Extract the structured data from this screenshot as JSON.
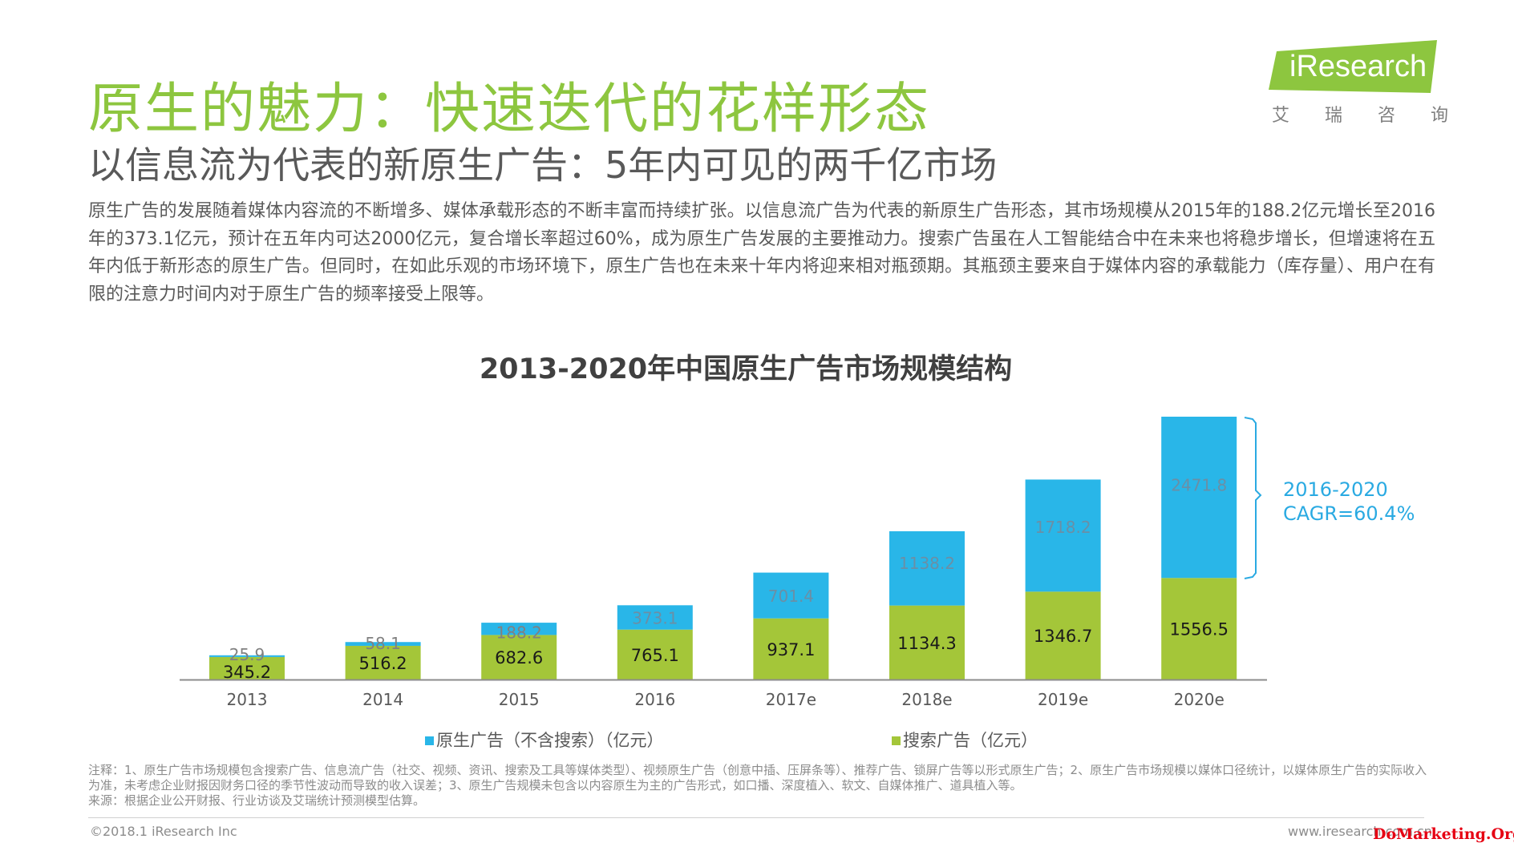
{
  "header": {
    "title": "原生的魅力：快速迭代的花样形态",
    "subtitle": "以信息流为代表的新原生广告：5年内可见的两千亿市场",
    "paragraph": "原生广告的发展随着媒体内容流的不断增多、媒体承载形态的不断丰富而持续扩张。以信息流广告为代表的新原生广告形态，其市场规模从2015年的188.2亿元增长至2016年的373.1亿元，预计在五年内可达2000亿元，复合增长率超过60%，成为原生广告发展的主要推动力。搜索广告虽在人工智能结合中在未来也将稳步增长，但增速将在五年内低于新形态的原生广告。但同时，在如此乐观的市场环境下，原生广告也在未来十年内将迎来相对瓶颈期。其瓶颈主要来自于媒体内容的承载能力（库存量）、用户在有限的注意力时间内对于原生广告的频率接受上限等。"
  },
  "logo": {
    "text": "iResearch",
    "sub": [
      "艾",
      "瑞",
      "咨",
      "询"
    ],
    "color": "#8dc63f"
  },
  "chart_data": {
    "type": "bar",
    "stacked": true,
    "title": "2013-2020年中国原生广告市场规模结构",
    "categories": [
      "2013",
      "2014",
      "2015",
      "2016",
      "2017e",
      "2018e",
      "2019e",
      "2020e"
    ],
    "series": [
      {
        "name": "搜索广告（亿元）",
        "color": "#a4c639",
        "values": [
          345.2,
          516.2,
          682.6,
          765.1,
          937.1,
          1134.3,
          1346.7,
          1556.5
        ]
      },
      {
        "name": "原生广告（不含搜索）（亿元）",
        "color": "#29b6e8",
        "values": [
          25.9,
          58.1,
          188.2,
          373.1,
          701.4,
          1138.2,
          1718.2,
          2471.8
        ]
      }
    ],
    "legend_order": [
      1,
      0
    ],
    "legend_position": "bottom",
    "ylim": [
      0,
      4028.3
    ],
    "annotation": {
      "lines": [
        "2016-2020",
        "CAGR=60.4%"
      ],
      "color": "#2aaae2"
    },
    "grid": false
  },
  "footer": {
    "note": "注释：1、原生广告市场规模包含搜索广告、信息流广告（社交、视频、资讯、搜索及工具等媒体类型）、视频原生广告（创意中插、压屏条等）、推荐广告、锁屏广告等以形式原生广告；2、原生广告市场规模以媒体口径统计，以媒体原生广告的实际收入为准，未考虑企业财报因财务口径的季节性波动而导致的收入误差；3、原生广告规模未包含以内容原生为主的广告形式，如口播、深度植入、软文、自媒体推广、道具植入等。",
    "source": "来源：根据企业公开财报、行业访谈及艾瑞统计预测模型估算。",
    "copyright": "©2018.1 iResearch Inc",
    "site": "www.iresearch.com.cn",
    "watermark": "DoMarketing.Org"
  }
}
